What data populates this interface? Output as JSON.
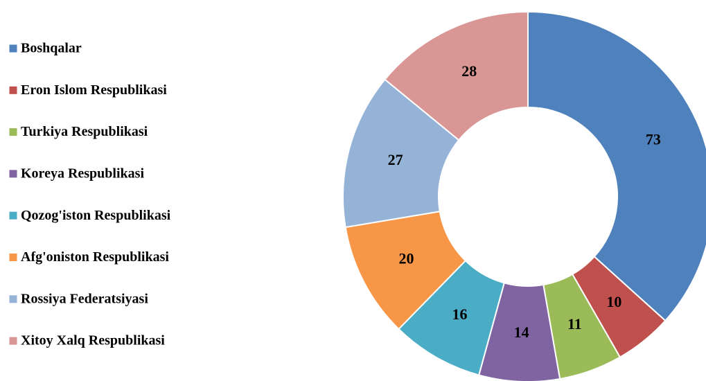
{
  "chart_data": {
    "type": "donut",
    "categories": [
      "Boshqalar",
      "Eron Islom Respublikasi",
      "Turkiya Respublikasi",
      "Koreya Respublikasi",
      "Qozog'iston Respublikasi",
      "Afg'oniston Respublikasi",
      "Rossiya Federatsiyasi",
      "Xitoy Xalq Respublikasi"
    ],
    "values": [
      73,
      10,
      11,
      14,
      16,
      20,
      27,
      28
    ],
    "colors": [
      "#4f81bd",
      "#c0504d",
      "#9bbb59",
      "#8064a2",
      "#4bacc6",
      "#f79646",
      "#95b3d7",
      "#d99694"
    ],
    "legend": "left"
  }
}
